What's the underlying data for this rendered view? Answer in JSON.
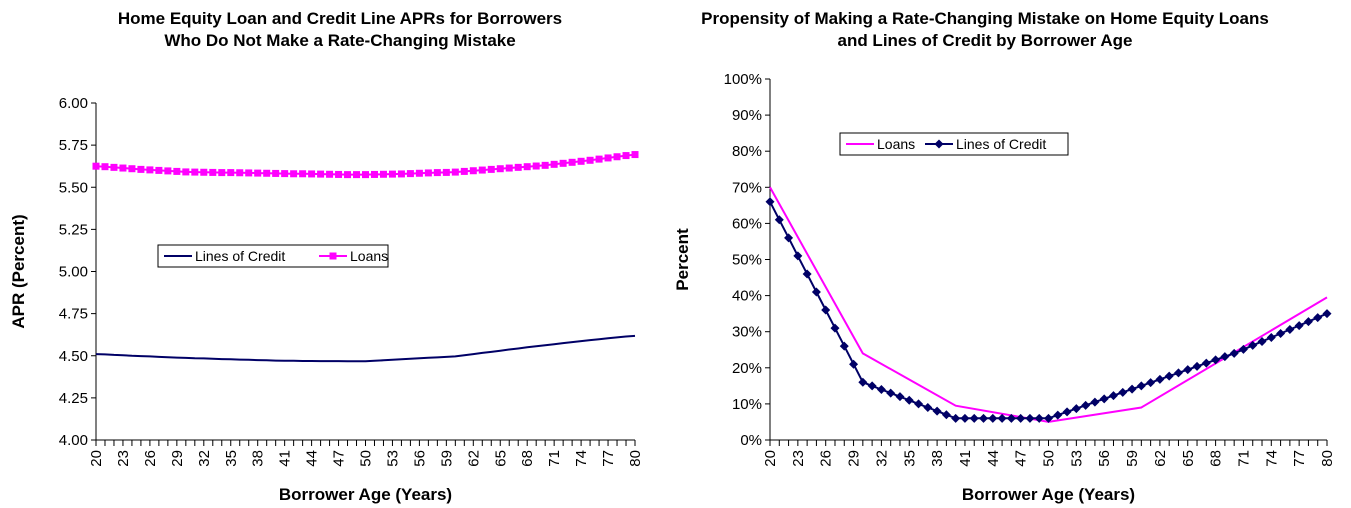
{
  "chart_data": [
    {
      "type": "line",
      "title": "Home Equity Loan and Credit Line APRs for Borrowers Who Do Not Make a Rate-Changing Mistake",
      "xlabel": "Borrower Age (Years)",
      "ylabel": "APR (Percent)",
      "x": [
        20,
        21,
        22,
        23,
        24,
        25,
        26,
        27,
        28,
        29,
        30,
        31,
        32,
        33,
        34,
        35,
        36,
        37,
        38,
        39,
        40,
        41,
        42,
        43,
        44,
        45,
        46,
        47,
        48,
        49,
        50,
        51,
        52,
        53,
        54,
        55,
        56,
        57,
        58,
        59,
        60,
        61,
        62,
        63,
        64,
        65,
        66,
        67,
        68,
        69,
        70,
        71,
        72,
        73,
        74,
        75,
        76,
        77,
        78,
        79,
        80
      ],
      "x_ticks": [
        20,
        23,
        26,
        29,
        32,
        35,
        38,
        41,
        44,
        47,
        50,
        53,
        56,
        59,
        62,
        65,
        68,
        71,
        74,
        77,
        80
      ],
      "ylim": [
        4.0,
        6.0
      ],
      "y_ticks": [
        "4.00",
        "4.25",
        "4.50",
        "4.75",
        "5.00",
        "5.25",
        "5.50",
        "5.75",
        "6.00"
      ],
      "legend_position": "center-left",
      "series": [
        {
          "name": "Lines of Credit",
          "color": "#000066",
          "marker": "none",
          "values": [
            4.51,
            4.508,
            4.505,
            4.503,
            4.5,
            4.498,
            4.496,
            4.493,
            4.491,
            4.489,
            4.487,
            4.485,
            4.484,
            4.482,
            4.48,
            4.479,
            4.477,
            4.476,
            4.474,
            4.473,
            4.471,
            4.47,
            4.47,
            4.469,
            4.469,
            4.468,
            4.468,
            4.468,
            4.467,
            4.467,
            4.467,
            4.47,
            4.473,
            4.476,
            4.479,
            4.482,
            4.485,
            4.488,
            4.49,
            4.493,
            4.496,
            4.503,
            4.51,
            4.517,
            4.523,
            4.53,
            4.537,
            4.543,
            4.55,
            4.556,
            4.562,
            4.568,
            4.575,
            4.581,
            4.587,
            4.593,
            4.598,
            4.604,
            4.609,
            4.614,
            4.618
          ]
        },
        {
          "name": "Loans",
          "color": "#ff00ff",
          "marker": "square",
          "values": [
            5.625,
            5.622,
            5.618,
            5.614,
            5.61,
            5.606,
            5.603,
            5.6,
            5.597,
            5.594,
            5.591,
            5.59,
            5.589,
            5.588,
            5.587,
            5.587,
            5.586,
            5.585,
            5.584,
            5.583,
            5.582,
            5.581,
            5.58,
            5.58,
            5.579,
            5.578,
            5.577,
            5.576,
            5.575,
            5.575,
            5.575,
            5.576,
            5.577,
            5.578,
            5.579,
            5.581,
            5.583,
            5.585,
            5.587,
            5.588,
            5.59,
            5.594,
            5.598,
            5.602,
            5.606,
            5.61,
            5.614,
            5.618,
            5.622,
            5.626,
            5.63,
            5.636,
            5.642,
            5.648,
            5.654,
            5.66,
            5.667,
            5.674,
            5.681,
            5.688,
            5.694
          ]
        }
      ]
    },
    {
      "type": "line",
      "title": "Propensity of Making a Rate-Changing Mistake on Home Equity Loans and Lines of Credit by Borrower Age",
      "xlabel": "Borrower Age (Years)",
      "ylabel": "Percent",
      "x": [
        20,
        21,
        22,
        23,
        24,
        25,
        26,
        27,
        28,
        29,
        30,
        31,
        32,
        33,
        34,
        35,
        36,
        37,
        38,
        39,
        40,
        41,
        42,
        43,
        44,
        45,
        46,
        47,
        48,
        49,
        50,
        51,
        52,
        53,
        54,
        55,
        56,
        57,
        58,
        59,
        60,
        61,
        62,
        63,
        64,
        65,
        66,
        67,
        68,
        69,
        70,
        71,
        72,
        73,
        74,
        75,
        76,
        77,
        78,
        79,
        80
      ],
      "x_ticks": [
        20,
        23,
        26,
        29,
        32,
        35,
        38,
        41,
        44,
        47,
        50,
        53,
        56,
        59,
        62,
        65,
        68,
        71,
        74,
        77,
        80
      ],
      "ylim": [
        0,
        100
      ],
      "y_ticks": [
        "0%",
        "10%",
        "20%",
        "30%",
        "40%",
        "50%",
        "60%",
        "70%",
        "80%",
        "90%",
        "100%"
      ],
      "legend_position": "top-center",
      "series": [
        {
          "name": "Loans",
          "color": "#ff00ff",
          "marker": "none",
          "x": [
            20,
            30,
            40,
            50,
            60,
            80
          ],
          "values": [
            70,
            24,
            9.5,
            5,
            9,
            39.5
          ]
        },
        {
          "name": "Lines of Credit",
          "color": "#000066",
          "marker": "diamond",
          "values": [
            66,
            61,
            56,
            51,
            46,
            41,
            36,
            31,
            26,
            21,
            16,
            15,
            14,
            13,
            12,
            11,
            10,
            9,
            8,
            7,
            6,
            6,
            6,
            6,
            6,
            6,
            6,
            6,
            6,
            6,
            6,
            6.9,
            7.8,
            8.7,
            9.6,
            10.5,
            11.4,
            12.3,
            13.2,
            14.1,
            15,
            15.9,
            16.8,
            17.7,
            18.6,
            19.5,
            20.4,
            21.3,
            22.2,
            23.1,
            24,
            25.1,
            26.2,
            27.3,
            28.4,
            29.5,
            30.6,
            31.7,
            32.8,
            33.9,
            35
          ]
        }
      ]
    }
  ]
}
